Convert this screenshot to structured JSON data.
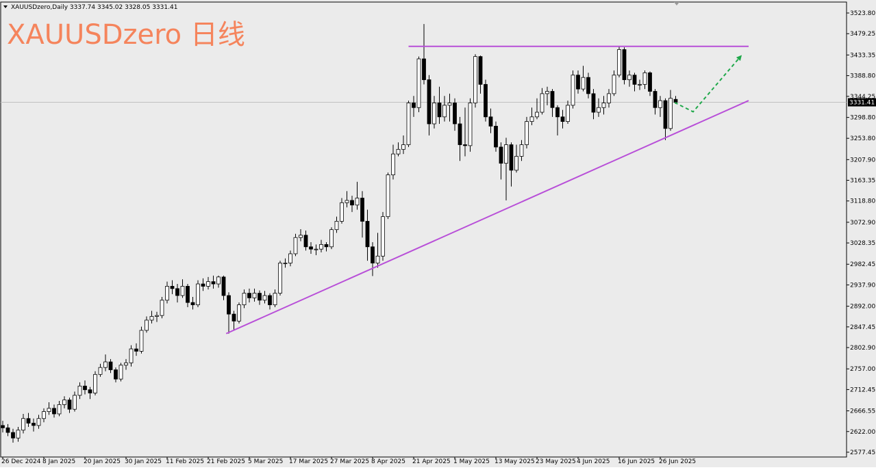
{
  "chart_data": {
    "type": "candlestick",
    "symbol": "XAUUSDzero,Daily",
    "watermark": "XAUUSDzero 日线",
    "categories": [
      "26 Dec 2024",
      null,
      null,
      null,
      null,
      null,
      null,
      null,
      "8 Jan 2025",
      null,
      null,
      null,
      null,
      null,
      null,
      null,
      "20 Jan 2025",
      null,
      null,
      null,
      null,
      null,
      null,
      null,
      "30 Jan 2025",
      null,
      null,
      null,
      null,
      null,
      null,
      null,
      "11 Feb 2025",
      null,
      null,
      null,
      null,
      null,
      null,
      null,
      "21 Feb 2025",
      null,
      null,
      null,
      null,
      null,
      null,
      null,
      "5 Mar 2025",
      null,
      null,
      null,
      null,
      null,
      null,
      null,
      "17 Mar 2025",
      null,
      null,
      null,
      null,
      null,
      null,
      null,
      "27 Mar 2025",
      null,
      null,
      null,
      null,
      null,
      null,
      null,
      "8 Apr 2025",
      null,
      null,
      null,
      null,
      null,
      null,
      null,
      "21 Apr 2025",
      null,
      null,
      null,
      null,
      null,
      null,
      null,
      "1 May 2025",
      null,
      null,
      null,
      null,
      null,
      null,
      null,
      "13 May 2025",
      null,
      null,
      null,
      null,
      null,
      null,
      null,
      "23 May 2025",
      null,
      null,
      null,
      null,
      null,
      null,
      null,
      "4 Jun 2025",
      null,
      null,
      null,
      null,
      null,
      null,
      null,
      "16 Jun 2025",
      null,
      null,
      null,
      null,
      null,
      null,
      null,
      "26 Jun 2025",
      null,
      null,
      null
    ],
    "open": [
      2635,
      2630,
      2620,
      2608,
      2625,
      2650,
      2640,
      2635,
      2650,
      2665,
      2672,
      2660,
      2680,
      2690,
      2670,
      2700,
      2720,
      2712,
      2705,
      2745,
      2760,
      2772,
      2755,
      2735,
      2765,
      2770,
      2800,
      2795,
      2840,
      2862,
      2870,
      2872,
      2905,
      2935,
      2930,
      2915,
      2935,
      2900,
      2895,
      2940,
      2935,
      2945,
      2940,
      2955,
      2915,
      2875,
      2860,
      2895,
      2920,
      2910,
      2920,
      2905,
      2915,
      2895,
      2920,
      2985,
      2985,
      3005,
      3040,
      3045,
      3020,
      3015,
      3015,
      3025,
      3020,
      3057,
      3075,
      3115,
      3120,
      3110,
      3125,
      3075,
      3020,
      2985,
      3000,
      3085,
      3175,
      3220,
      3230,
      3240,
      3330,
      3320,
      3425,
      3380,
      3285,
      3330,
      3300,
      3325,
      3330,
      3285,
      3240,
      3238,
      3330,
      3430,
      3370,
      3300,
      3280,
      3235,
      3200,
      3240,
      3185,
      3215,
      3240,
      3290,
      3300,
      3310,
      3350,
      3355,
      3320,
      3300,
      3290,
      3325,
      3390,
      3360,
      3385,
      3350,
      3310,
      3320,
      3330,
      3350,
      3390,
      3445,
      3380,
      3390,
      3370,
      3370,
      3395,
      3355,
      3320,
      3335,
      3275,
      3337.74
    ],
    "high": [
      2645,
      2638,
      2628,
      2632,
      2660,
      2662,
      2650,
      2658,
      2672,
      2685,
      2680,
      2688,
      2698,
      2695,
      2708,
      2728,
      2732,
      2718,
      2752,
      2768,
      2788,
      2778,
      2760,
      2770,
      2778,
      2808,
      2812,
      2848,
      2870,
      2882,
      2880,
      2912,
      2945,
      2948,
      2940,
      2950,
      2940,
      2912,
      2948,
      2952,
      2955,
      2958,
      2958,
      2958,
      2922,
      2882,
      2900,
      2928,
      2930,
      2930,
      2926,
      2925,
      2920,
      2928,
      2990,
      2995,
      3012,
      3048,
      3058,
      3055,
      3030,
      3025,
      3035,
      3030,
      3062,
      3085,
      3125,
      3140,
      3130,
      3160,
      3140,
      3100,
      3030,
      3050,
      3095,
      3180,
      3240,
      3245,
      3260,
      3335,
      3345,
      3430,
      3500,
      3390,
      3345,
      3365,
      3345,
      3350,
      3340,
      3300,
      3320,
      3340,
      3435,
      3432,
      3380,
      3318,
      3290,
      3245,
      3255,
      3245,
      3240,
      3250,
      3300,
      3320,
      3340,
      3362,
      3365,
      3360,
      3325,
      3315,
      3335,
      3400,
      3400,
      3410,
      3395,
      3360,
      3340,
      3345,
      3360,
      3400,
      3452,
      3450,
      3400,
      3395,
      3380,
      3400,
      3398,
      3360,
      3345,
      3340,
      3358,
      3345.02
    ],
    "low": [
      2620,
      2612,
      2598,
      2600,
      2618,
      2632,
      2622,
      2628,
      2642,
      2658,
      2652,
      2655,
      2672,
      2662,
      2665,
      2692,
      2702,
      2692,
      2700,
      2740,
      2752,
      2748,
      2728,
      2730,
      2755,
      2762,
      2785,
      2790,
      2835,
      2855,
      2858,
      2866,
      2898,
      2918,
      2900,
      2910,
      2890,
      2885,
      2890,
      2925,
      2928,
      2930,
      2932,
      2905,
      2833,
      2840,
      2855,
      2888,
      2900,
      2902,
      2895,
      2898,
      2885,
      2890,
      2915,
      2975,
      2978,
      3000,
      3032,
      3012,
      3005,
      3002,
      3008,
      3010,
      3015,
      3050,
      3070,
      3105,
      3095,
      3100,
      3040,
      2990,
      2957,
      2975,
      2990,
      3080,
      3165,
      3215,
      3220,
      3235,
      3300,
      3310,
      3370,
      3260,
      3275,
      3285,
      3290,
      3290,
      3270,
      3205,
      3215,
      3225,
      3320,
      3350,
      3290,
      3265,
      3225,
      3165,
      3120,
      3150,
      3180,
      3205,
      3232,
      3282,
      3295,
      3305,
      3325,
      3300,
      3260,
      3275,
      3285,
      3318,
      3350,
      3355,
      3340,
      3295,
      3300,
      3305,
      3320,
      3345,
      3385,
      3370,
      3365,
      3355,
      3358,
      3360,
      3345,
      3305,
      3300,
      3250,
      3270,
      3328.05
    ],
    "close": [
      2630,
      2620,
      2608,
      2625,
      2650,
      2640,
      2635,
      2650,
      2665,
      2672,
      2660,
      2680,
      2690,
      2670,
      2700,
      2720,
      2712,
      2705,
      2745,
      2760,
      2772,
      2755,
      2735,
      2765,
      2770,
      2800,
      2795,
      2840,
      2862,
      2870,
      2872,
      2905,
      2935,
      2930,
      2915,
      2935,
      2900,
      2895,
      2940,
      2935,
      2945,
      2940,
      2955,
      2915,
      2875,
      2860,
      2895,
      2920,
      2910,
      2920,
      2905,
      2915,
      2895,
      2920,
      2985,
      2985,
      3005,
      3040,
      3045,
      3020,
      3015,
      3015,
      3025,
      3020,
      3057,
      3075,
      3115,
      3120,
      3110,
      3125,
      3075,
      3020,
      2985,
      3000,
      3085,
      3175,
      3220,
      3230,
      3240,
      3330,
      3320,
      3425,
      3380,
      3285,
      3330,
      3300,
      3325,
      3330,
      3285,
      3240,
      3238,
      3330,
      3430,
      3370,
      3300,
      3280,
      3235,
      3200,
      3240,
      3185,
      3215,
      3240,
      3290,
      3300,
      3310,
      3350,
      3355,
      3320,
      3300,
      3290,
      3325,
      3390,
      3360,
      3385,
      3350,
      3310,
      3320,
      3330,
      3350,
      3390,
      3445,
      3380,
      3390,
      3370,
      3370,
      3395,
      3355,
      3320,
      3335,
      3275,
      3340,
      3331.41
    ],
    "up_color": "#ffffff",
    "down_color": "#000000",
    "ylim": [
      2567.1,
      3547.4
    ],
    "yticks": [
      {
        "value": 3523.8,
        "label": "3523.80"
      },
      {
        "value": 3479.25,
        "label": "3479.25"
      },
      {
        "value": 3433.35,
        "label": "3433.35"
      },
      {
        "value": 3388.8,
        "label": "3388.80"
      },
      {
        "value": 3344.25,
        "label": "3344.25"
      },
      {
        "value": 3298.8,
        "label": "3298.80"
      },
      {
        "value": 3253.8,
        "label": "3253.80"
      },
      {
        "value": 3207.9,
        "label": "3207.90"
      },
      {
        "value": 3163.35,
        "label": "3163.35"
      },
      {
        "value": 3118.8,
        "label": "3118.80"
      },
      {
        "value": 3072.9,
        "label": "3072.90"
      },
      {
        "value": 3028.35,
        "label": "3028.35"
      },
      {
        "value": 2982.45,
        "label": "2982.45"
      },
      {
        "value": 2937.9,
        "label": "2937.90"
      },
      {
        "value": 2892,
        "label": "2892.00"
      },
      {
        "value": 2847.45,
        "label": "2847.45"
      },
      {
        "value": 2802.9,
        "label": "2802.90"
      },
      {
        "value": 2757,
        "label": "2757.00"
      },
      {
        "value": 2712.45,
        "label": "2712.45"
      },
      {
        "value": 2666.55,
        "label": "2666.55"
      },
      {
        "value": 2622,
        "label": "2622.00"
      },
      {
        "value": 2577.45,
        "label": "2577.45"
      }
    ],
    "trendlines": [
      {
        "color": "#b84fd8",
        "x": [
          79,
          145.2
        ],
        "y": [
          3452,
          3452
        ]
      },
      {
        "color": "#b84fd8",
        "x": [
          43.5,
          145.2
        ],
        "y": [
          2833,
          3335
        ]
      }
    ],
    "projection": {
      "color": "#1fa84a",
      "x": [
        130.8,
        134.4,
        143.7
      ],
      "y": [
        3331,
        3311,
        3431
      ]
    }
  }
}
